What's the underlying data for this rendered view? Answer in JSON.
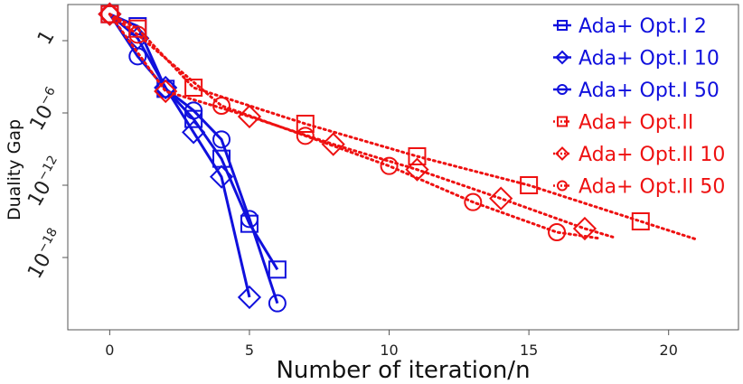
{
  "chart_data": {
    "type": "line",
    "title": "",
    "xlabel": "Number of iteration/n",
    "ylabel": "Duality Gap",
    "xlim": [
      -1.5,
      22.5
    ],
    "ylim_log10": [
      -24,
      3
    ],
    "y_scale": "log",
    "x_ticks": [
      0,
      5,
      10,
      15,
      20
    ],
    "x_tick_labels": [
      "0",
      "5",
      "10",
      "15",
      "20"
    ],
    "y_ticks_log10": [
      0,
      -6,
      -12,
      -18
    ],
    "y_tick_bases": [
      "1",
      "10",
      "10",
      "10"
    ],
    "y_tick_exponents": [
      "",
      "−6",
      "−12",
      "−18"
    ],
    "grid": false,
    "legend_position": "top-right",
    "series": [
      {
        "name": "Ada+ Opt.I 2",
        "color": "#1010dd",
        "marker": "square",
        "line_style": "solid",
        "x": [
          0,
          1,
          2,
          3,
          4,
          5,
          6
        ],
        "log10_y": [
          2.2,
          1.2,
          -4.0,
          -6.5,
          -9.8,
          -15.2,
          -19.0
        ]
      },
      {
        "name": "Ada+ Opt.I 10",
        "color": "#1010dd",
        "marker": "diamond",
        "line_style": "solid",
        "x": [
          0,
          1,
          2,
          3,
          4,
          5
        ],
        "log10_y": [
          2.2,
          0.2,
          -3.9,
          -7.6,
          -11.3,
          -21.3
        ]
      },
      {
        "name": "Ada+ Opt.I 50",
        "color": "#1010dd",
        "marker": "circle",
        "line_style": "solid",
        "x": [
          0,
          1,
          2,
          3,
          4,
          5,
          6
        ],
        "log10_y": [
          2.2,
          -1.3,
          -4.0,
          -5.8,
          -8.2,
          -14.8,
          -21.8
        ]
      },
      {
        "name": "Ada+ Opt.II",
        "color": "#ee1111",
        "marker": "square",
        "line_style": "dotted",
        "x": [
          0,
          1,
          3,
          7,
          11,
          15,
          19,
          21
        ],
        "log10_y": [
          2.2,
          1.0,
          -3.9,
          -6.9,
          -9.6,
          -12.0,
          -15.0,
          -16.5
        ]
      },
      {
        "name": "Ada+ Opt.II 10",
        "color": "#ee1111",
        "marker": "diamond",
        "line_style": "dotted",
        "x": [
          0,
          2,
          5,
          8,
          11,
          14,
          17,
          18
        ],
        "log10_y": [
          2.2,
          -4.2,
          -6.3,
          -8.6,
          -10.7,
          -13.1,
          -15.6,
          -16.3
        ]
      },
      {
        "name": "Ada+ Opt.II 50",
        "color": "#ee1111",
        "marker": "circle",
        "line_style": "dotted",
        "x": [
          0,
          1,
          4,
          7,
          10,
          13,
          16,
          17.5
        ],
        "log10_y": [
          2.2,
          0.5,
          -5.4,
          -7.9,
          -10.4,
          -13.4,
          -15.9,
          -16.4
        ]
      }
    ]
  }
}
